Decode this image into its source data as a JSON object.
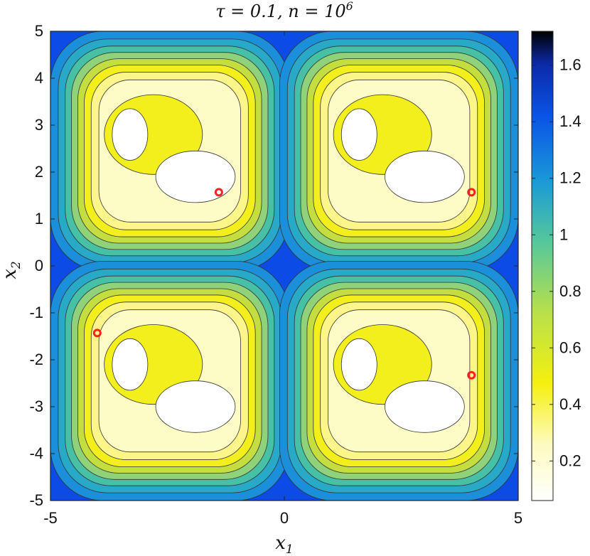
{
  "chart_data": {
    "type": "heatmap",
    "title": "τ = 0.1, n = 10",
    "title_sup": "6",
    "xlabel": "x",
    "xlabel_sub": "1",
    "ylabel": "x",
    "ylabel_sub": "2",
    "xlim": [
      -5,
      5
    ],
    "ylim": [
      -5,
      5
    ],
    "xticks": [
      -5,
      0,
      5
    ],
    "xtick_labels": [
      "-5",
      "0",
      "5"
    ],
    "yticks": [
      5,
      4,
      3,
      2,
      1,
      0,
      -1,
      -2,
      -3,
      -4,
      -5
    ],
    "ytick_labels": [
      "5",
      "4",
      "3",
      "2",
      "1",
      "0",
      "-1",
      "-2",
      "-3",
      "-4",
      "-5"
    ],
    "colorbar": {
      "range": [
        0.06,
        1.72
      ],
      "ticks": [
        1.6,
        1.4,
        1.2,
        1,
        0.8,
        0.6,
        0.4,
        0.2
      ],
      "tick_labels": [
        "1.6",
        "1.4",
        "1.2",
        "1",
        "0.8",
        "0.6",
        "0.4",
        "0.2"
      ],
      "colormap": "parula"
    },
    "grid": false,
    "markers": [
      {
        "x": -1.4,
        "y": 1.57
      },
      {
        "x": 4.0,
        "y": 1.57
      },
      {
        "x": -4.0,
        "y": -1.43
      },
      {
        "x": 4.0,
        "y": -2.33
      }
    ],
    "marker_color": "#ff2020"
  }
}
